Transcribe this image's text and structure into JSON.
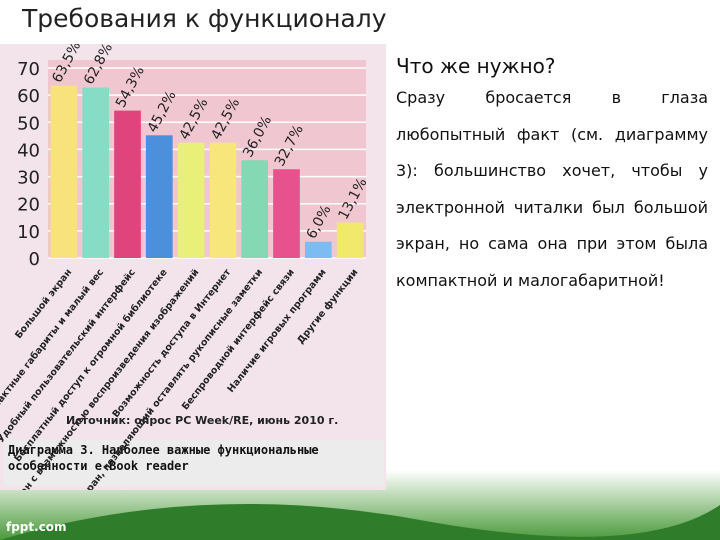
{
  "slide_title": "Требования к функционалу",
  "heading": "Что же нужно?",
  "paragraph": "Сразу бросается в глаза любопытный факт (см. диаграмму 3): большинство хочет, чтобы у электронной читалки был большой экран, но сама она при этом была компактной и малогабаритной!",
  "footer": "fppt.com",
  "chart_data": {
    "type": "bar",
    "categories": [
      "Большой экран",
      "Компактные габариты и малый вес",
      "Удобный пользовательский интерфейс",
      "Бесплатный доступ к огромной библиотеке",
      "Цветной экран с возможностью воспроизведения изображений",
      "Возможность доступа в Интернет",
      "Сенсорный экран, позволяющий оставлять рукописные заметки",
      "Беспроводной интерфейс связи",
      "Наличие игровых программ",
      "Другие функции"
    ],
    "values": [
      63.5,
      62.8,
      54.3,
      45.2,
      42.5,
      42.5,
      36.0,
      32.7,
      6.0,
      13.1
    ],
    "value_labels": [
      "63,5%",
      "62,8%",
      "54,3%",
      "45,2%",
      "42,5%",
      "42,5%",
      "36,0%",
      "32,7%",
      "6,0%",
      "13,1%"
    ],
    "colors": [
      "#f7e27c",
      "#86dcc4",
      "#e0447c",
      "#4c8fda",
      "#e9f07a",
      "#f6e67c",
      "#84d8b4",
      "#e8528c",
      "#7cbcf2",
      "#f1e96c"
    ],
    "ylim": [
      0,
      70
    ],
    "yticks": [
      0,
      10,
      20,
      30,
      40,
      50,
      60,
      70
    ],
    "grid": true,
    "source": "Источник: опрос PC Week/RE, июнь 2010 г.",
    "caption": "Диаграмма 3. Наиболее важные функциональные особенности e-Book reader"
  }
}
